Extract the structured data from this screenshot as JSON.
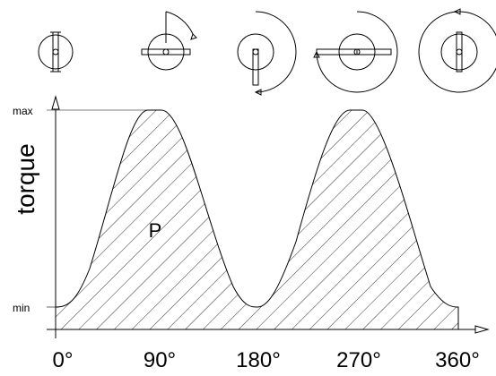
{
  "axis": {
    "y_label": "torque",
    "y_ticks": [
      "max",
      "min"
    ],
    "x_ticks": [
      "0°",
      "90°",
      "180°",
      "270°",
      "360°"
    ]
  },
  "area_label": "P"
}
